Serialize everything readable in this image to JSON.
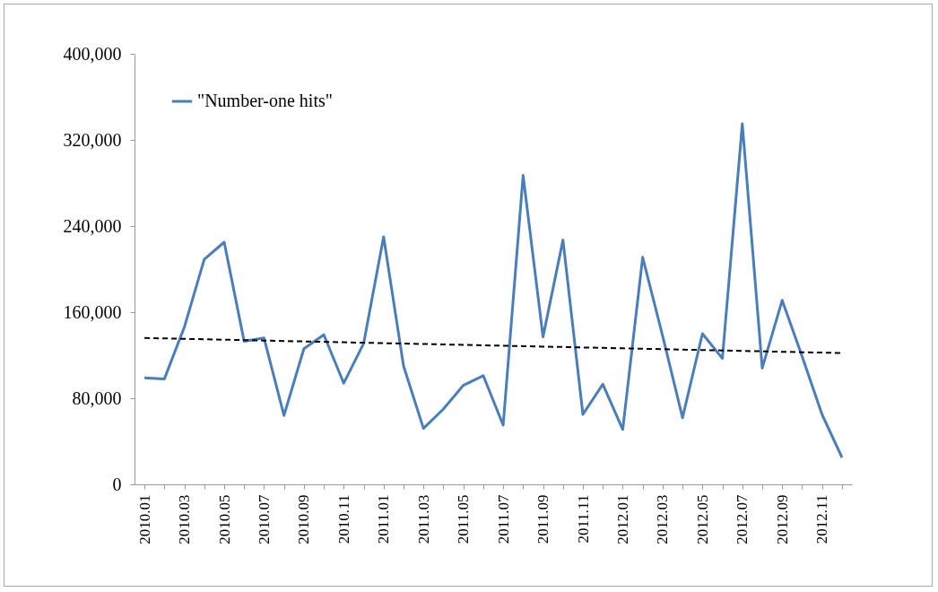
{
  "chart_data": {
    "type": "line",
    "categories": [
      "2010.01",
      null,
      "2010.03",
      null,
      "2010.05",
      null,
      "2010.07",
      null,
      "2010.09",
      null,
      "2010.11",
      null,
      "2011.01",
      null,
      "2011.03",
      null,
      "2011.05",
      null,
      "2011.07",
      null,
      "2011.09",
      null,
      "2011.11",
      null,
      "2012.01",
      null,
      "2012.03",
      null,
      "2012.05",
      null,
      "2012.07",
      null,
      "2012.09",
      null,
      "2012.11",
      null
    ],
    "series": [
      {
        "name": "\"Number-one hits\"",
        "color": "#4a7ebb",
        "line_style": "solid",
        "values": [
          99000,
          98000,
          146000,
          209000,
          225000,
          133000,
          136000,
          64000,
          126000,
          139000,
          94000,
          131000,
          230000,
          110000,
          52000,
          70000,
          92000,
          101000,
          55000,
          287000,
          137000,
          227000,
          65000,
          93000,
          51000,
          211000,
          138000,
          62000,
          140000,
          117000,
          335000,
          108000,
          171000,
          119000,
          65000,
          25000
        ]
      },
      {
        "type": "line",
        "color": "#000000",
        "line_style": "dashed",
        "values": [
          136000,
          135600,
          135200,
          134800,
          134400,
          134000,
          133600,
          133200,
          132800,
          132400,
          132000,
          131600,
          131200,
          130800,
          130400,
          130000,
          129600,
          129200,
          128800,
          128400,
          128000,
          127600,
          127200,
          126800,
          126400,
          126000,
          125600,
          125200,
          124800,
          124400,
          124000,
          123600,
          123200,
          122800,
          122400,
          122000
        ]
      }
    ],
    "ylim": [
      0,
      400000
    ],
    "yticks": [
      0,
      {
        "value": 80000,
        "label": "80,000"
      },
      {
        "value": 160000,
        "label": "160,000"
      },
      {
        "value": 240000,
        "label": "240,000"
      },
      {
        "value": 320000,
        "label": "320,000"
      },
      {
        "value": 400000,
        "label": "400,000"
      }
    ],
    "grid": false,
    "legend": "top left",
    "marker": "none"
  }
}
